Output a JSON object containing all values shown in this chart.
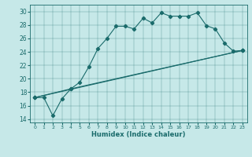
{
  "xlabel": "Humidex (Indice chaleur)",
  "xlim": [
    -0.5,
    23.5
  ],
  "ylim": [
    13.5,
    31
  ],
  "yticks": [
    14,
    16,
    18,
    20,
    22,
    24,
    26,
    28,
    30
  ],
  "xticks": [
    0,
    1,
    2,
    3,
    4,
    5,
    6,
    7,
    8,
    9,
    10,
    11,
    12,
    13,
    14,
    15,
    16,
    17,
    18,
    19,
    20,
    21,
    22,
    23
  ],
  "background_color": "#c6e8e8",
  "line_color": "#1a6b6b",
  "line1_x": [
    0,
    1,
    2,
    3,
    4,
    5,
    6,
    7,
    8,
    9,
    10,
    11,
    12,
    13,
    14,
    15,
    16,
    17,
    18,
    19,
    20,
    21,
    22,
    23
  ],
  "line1_y": [
    17.2,
    17.2,
    14.5,
    17.0,
    18.5,
    19.5,
    21.8,
    24.5,
    26.0,
    27.8,
    27.8,
    27.4,
    29.0,
    28.3,
    29.8,
    29.3,
    29.3,
    29.3,
    29.8,
    27.9,
    27.4,
    25.3,
    24.1,
    24.2
  ],
  "line2_x": [
    0,
    23
  ],
  "line2_y": [
    17.2,
    24.2
  ],
  "line3_x": [
    0,
    4,
    23
  ],
  "line3_y": [
    17.2,
    18.5,
    24.2
  ],
  "marker": "D",
  "markersize": 2.2,
  "linewidth": 0.8
}
